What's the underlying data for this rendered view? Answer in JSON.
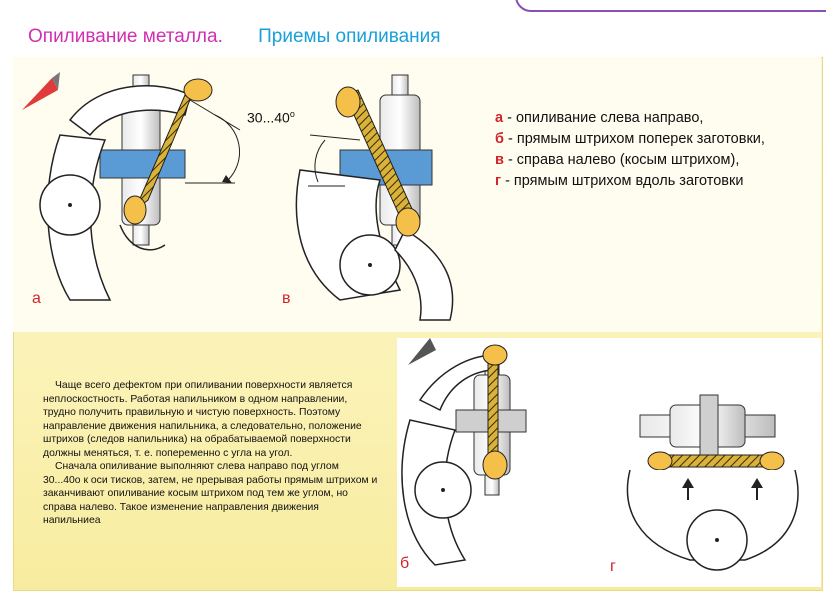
{
  "header": {
    "title": "Опиливание металла.",
    "subtitle": "Приемы опиливания"
  },
  "figures": {
    "angle_label": "30...40",
    "angle_degree": "o",
    "labels": {
      "a": "а",
      "v": "в",
      "b": "б",
      "g": "г"
    }
  },
  "legend": [
    {
      "key": "а",
      "text": " - опиливание слева направо,"
    },
    {
      "key": "б",
      "text": " - прямым штрихом поперек заготовки,"
    },
    {
      "key": "в",
      "text": " - справа налево (косым штрихом),"
    },
    {
      "key": "г",
      "text": " - прямым штрихом вдоль заготовки"
    }
  ],
  "body": {
    "paragraph1": "Чаще всего дефектом при опиливании поверхности является неплоскостность. Работая напильником в одном направлении, трудно получить правильную  и чистую поверхность. Поэтому направление движения напильника, а следовательно, положение штрихов (следов напильника) на обрабатываемой поверхности должны меняться, т. е. попеременно с угла на угол.",
    "paragraph2": "Сначала опиливание выполняют слева направо под углом 30...40о к оси тисков, затем, не прерывая работы прямым штрихом и заканчивают опиливание косым штрихом под тем же углом, но справа налево. Такое изменение направления движения напильниеа"
  },
  "colors": {
    "title": "#d22fb0",
    "subtitle": "#1aa0d8",
    "legend_key": "#d2232a",
    "file": "#c9a227",
    "hand": "#f5c04a",
    "workpiece": "#5b9bd5"
  }
}
